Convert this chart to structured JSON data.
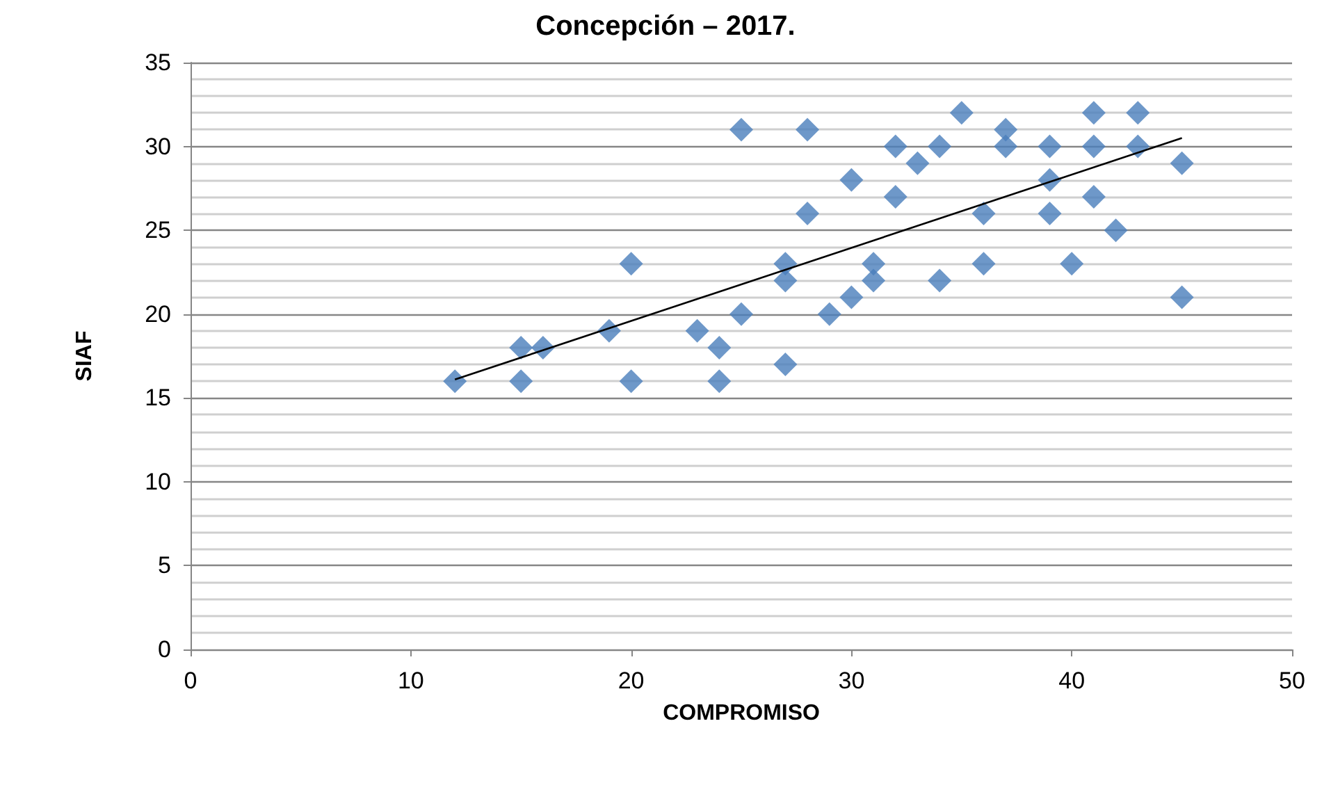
{
  "chart_data": {
    "type": "scatter",
    "title": "Concepción – 2017.",
    "xlabel": "COMPROMISO",
    "ylabel": "SIAF",
    "xlim": [
      0,
      50
    ],
    "xticks": [
      0,
      10,
      20,
      30,
      40,
      50
    ],
    "ylim": [
      0,
      35
    ],
    "yticks": [
      0,
      5,
      10,
      15,
      20,
      25,
      30,
      35
    ],
    "grid": "y",
    "marker": "diamond",
    "series": [
      {
        "color": "#4a7ebb",
        "x": [
          12,
          15,
          15,
          16,
          19,
          20,
          20,
          23,
          24,
          24,
          25,
          25,
          27,
          27,
          27,
          28,
          28,
          29,
          30,
          30,
          31,
          31,
          32,
          32,
          33,
          34,
          34,
          35,
          36,
          36,
          37,
          37,
          39,
          39,
          39,
          40,
          41,
          41,
          41,
          42,
          43,
          43,
          45,
          45
        ],
        "values": [
          16,
          18,
          16,
          18,
          19,
          23,
          16,
          19,
          18,
          16,
          31,
          20,
          23,
          22,
          17,
          31,
          26,
          20,
          28,
          21,
          23,
          22,
          30,
          27,
          29,
          30,
          22,
          32,
          26,
          23,
          31,
          30,
          30,
          28,
          26,
          23,
          32,
          30,
          27,
          25,
          32,
          30,
          29,
          21
        ]
      },
      {
        "type": "line",
        "color": "#000000",
        "marker": "none",
        "x": [
          12,
          45
        ],
        "values": [
          16.1,
          30.5
        ]
      }
    ]
  }
}
